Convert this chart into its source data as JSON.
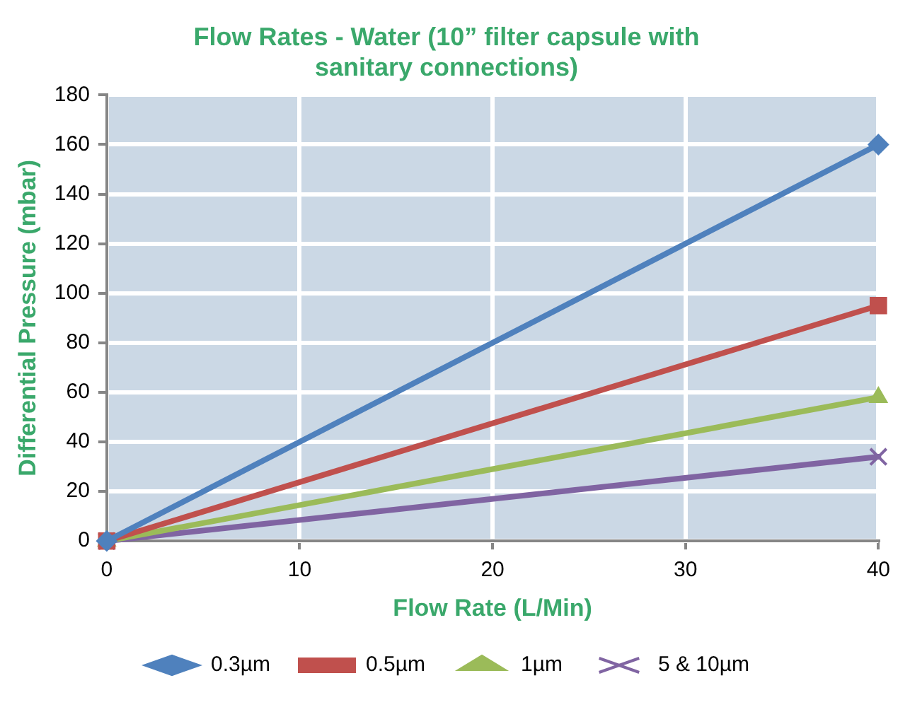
{
  "chart_data": {
    "type": "line",
    "title": "Flow Rates - Water (10” filter capsule with sanitary connections)",
    "xlabel": "Flow Rate (L/Min)",
    "ylabel": "Differential Pressure (mbar)",
    "x": [
      0,
      40
    ],
    "series": [
      {
        "name": "0.3µm",
        "color": "#4f81bd",
        "marker": "diamond",
        "values": [
          0,
          160
        ]
      },
      {
        "name": "0.5µm",
        "color": "#c0504d",
        "marker": "square",
        "values": [
          0,
          95
        ]
      },
      {
        "name": "1µm",
        "color": "#9bbb59",
        "marker": "triangle",
        "values": [
          0,
          58
        ]
      },
      {
        "name": "5 & 10µm",
        "color": "#8064a2",
        "marker": "cross",
        "values": [
          0,
          34
        ]
      }
    ],
    "xlim": [
      0,
      40
    ],
    "xticks": [
      0,
      10,
      20,
      30,
      40
    ],
    "ylim": [
      0,
      180
    ],
    "yticks": [
      0,
      20,
      40,
      60,
      80,
      100,
      120,
      140,
      160,
      180
    ],
    "grid": true,
    "legend": "bottom",
    "line_style": "solid"
  }
}
